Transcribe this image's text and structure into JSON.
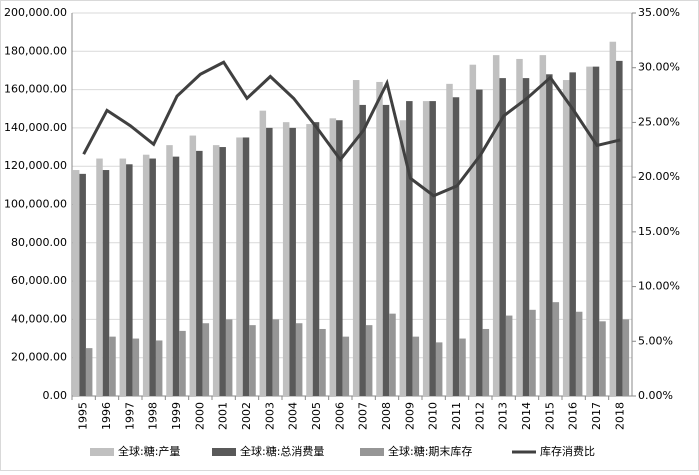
{
  "chart_data": {
    "type": "bar",
    "categories": [
      "1995",
      "1996",
      "1997",
      "1998",
      "1999",
      "2000",
      "2001",
      "2002",
      "2003",
      "2004",
      "2005",
      "2006",
      "2007",
      "2008",
      "2009",
      "2010",
      "2011",
      "2012",
      "2013",
      "2014",
      "2015",
      "2016",
      "2017",
      "2018"
    ],
    "series": [
      {
        "name": "全球:糖:产量",
        "color": "#c0c0c0",
        "values": [
          118000,
          124000,
          124000,
          126000,
          131000,
          136000,
          131000,
          135000,
          149000,
          143000,
          142000,
          145000,
          165000,
          164000,
          144000,
          154000,
          163000,
          173000,
          178000,
          176000,
          178000,
          165000,
          172000,
          185000
        ]
      },
      {
        "name": "全球:糖:总消费量",
        "color": "#595959",
        "values": [
          116000,
          118000,
          121000,
          124000,
          125000,
          128000,
          130000,
          135000,
          140000,
          140000,
          143000,
          144000,
          152000,
          152000,
          154000,
          154000,
          156000,
          160000,
          166000,
          166000,
          168000,
          169000,
          172000,
          175000
        ]
      },
      {
        "name": "全球:糖:期末库存",
        "color": "#969696",
        "values": [
          25000,
          31000,
          30000,
          29000,
          34000,
          38000,
          40000,
          37000,
          40000,
          38000,
          35000,
          31000,
          37000,
          43000,
          31000,
          28000,
          30000,
          35000,
          42000,
          45000,
          49000,
          44000,
          39000,
          40000
        ]
      },
      {
        "name": "库存消费比",
        "color": "#404040",
        "type": "line",
        "axis": "y2",
        "values": [
          22.1,
          26.1,
          24.7,
          23.0,
          27.4,
          29.4,
          30.5,
          27.2,
          29.2,
          27.2,
          24.5,
          21.6,
          24.3,
          28.6,
          19.9,
          18.3,
          19.2,
          22.0,
          25.6,
          27.2,
          29.1,
          26.1,
          22.9,
          23.4
        ]
      }
    ],
    "ylim": [
      0,
      200000
    ],
    "yticks": [
      {
        "value": 0,
        "label": "0.00"
      },
      {
        "value": 20000,
        "label": "20,000.00"
      },
      {
        "value": 40000,
        "label": "40,000.00"
      },
      {
        "value": 60000,
        "label": "60,000.00"
      },
      {
        "value": 80000,
        "label": "80,000.00"
      },
      {
        "value": 100000,
        "label": "100,000.00"
      },
      {
        "value": 120000,
        "label": "120,000.00"
      },
      {
        "value": 140000,
        "label": "140,000.00"
      },
      {
        "value": 160000,
        "label": "160,000.00"
      },
      {
        "value": 180000,
        "label": "180,000.00"
      },
      {
        "value": 200000,
        "label": "200,000.00"
      }
    ],
    "y2lim": [
      0,
      35
    ],
    "y2ticks": [
      {
        "value": 0,
        "label": "0.00%"
      },
      {
        "value": 5,
        "label": "5.00%"
      },
      {
        "value": 10,
        "label": "10.00%"
      },
      {
        "value": 15,
        "label": "15.00%"
      },
      {
        "value": 20,
        "label": "20.00%"
      },
      {
        "value": 25,
        "label": "25.00%"
      },
      {
        "value": 30,
        "label": "30.00%"
      },
      {
        "value": 35,
        "label": "35.00%"
      }
    ],
    "grid": true,
    "legend": "bottom"
  }
}
